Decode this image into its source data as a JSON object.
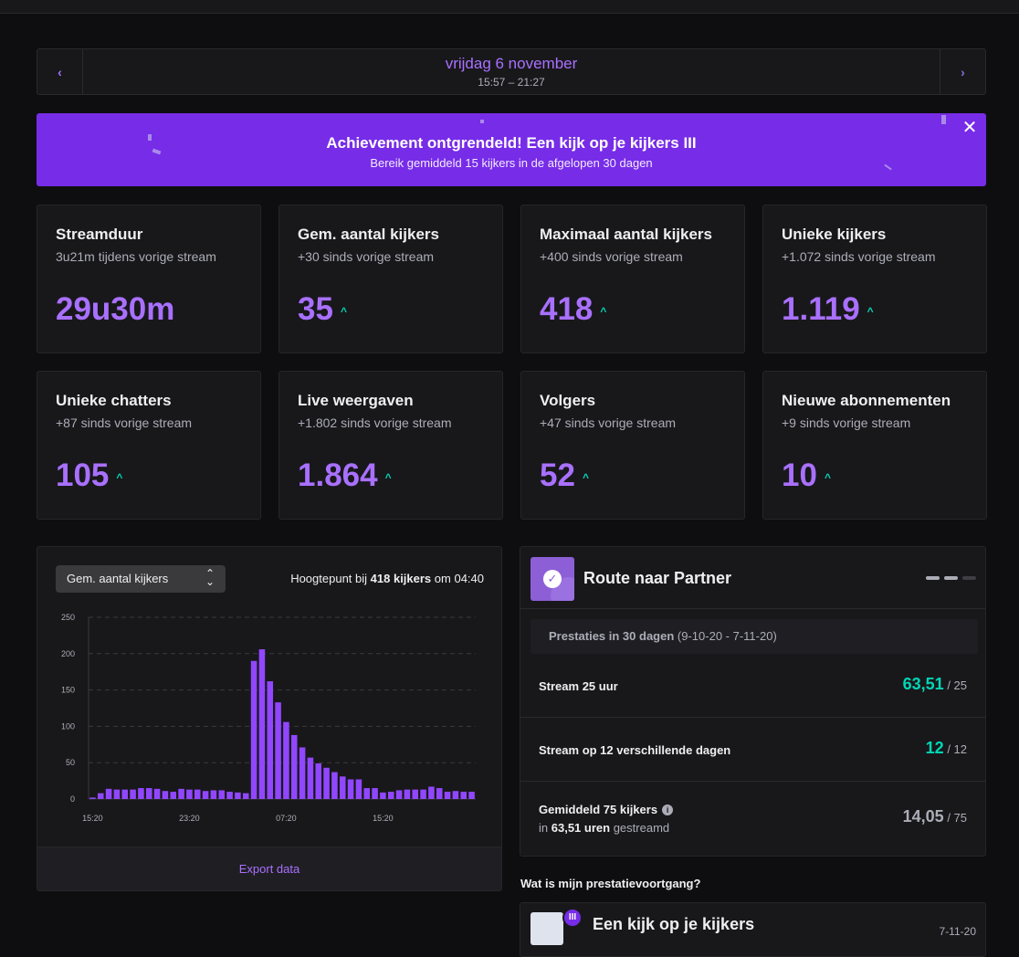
{
  "date_nav": {
    "prev": "‹",
    "next": "›",
    "date": "vrijdag 6 november",
    "time": "15:57 – 21:27"
  },
  "banner": {
    "title": "Achievement ontgrendeld! Een kijk op je kijkers III",
    "subtitle": "Bereik gemiddeld 15 kijkers in de afgelopen 30 dagen",
    "close": "✕"
  },
  "cards": [
    {
      "title": "Streamduur",
      "sub": "3u21m tijdens vorige stream",
      "value": "29u30m",
      "trend": ""
    },
    {
      "title": "Gem. aantal kijkers",
      "sub": "+30 sinds vorige stream",
      "value": "35",
      "trend": "^"
    },
    {
      "title": "Maximaal aantal kijkers",
      "sub": "+400 sinds vorige stream",
      "value": "418",
      "trend": "^"
    },
    {
      "title": "Unieke kijkers",
      "sub": "+1.072 sinds vorige stream",
      "value": "1.119",
      "trend": "^"
    },
    {
      "title": "Unieke chatters",
      "sub": "+87 sinds vorige stream",
      "value": "105",
      "trend": "^"
    },
    {
      "title": "Live weergaven",
      "sub": "+1.802 sinds vorige stream",
      "value": "1.864",
      "trend": "^"
    },
    {
      "title": "Volgers",
      "sub": "+47 sinds vorige stream",
      "value": "52",
      "trend": "^"
    },
    {
      "title": "Nieuwe abonnementen",
      "sub": "+9 sinds vorige stream",
      "value": "10",
      "trend": "^"
    }
  ],
  "chart_panel": {
    "select_label": "Gem. aantal kijkers",
    "peak_prefix": "Hoogtepunt bij",
    "peak_value": "418 kijkers",
    "peak_suffix": "om 04:40",
    "export_label": "Export data"
  },
  "chart_data": {
    "type": "bar",
    "title": "",
    "xlabel": "",
    "ylabel": "",
    "ylim": [
      0,
      250
    ],
    "yticks": [
      0,
      50,
      100,
      150,
      200,
      250
    ],
    "xtick_labels": [
      "15:20",
      "23:20",
      "07:20",
      "15:20"
    ],
    "xtick_index": [
      0,
      12,
      24,
      36
    ],
    "values": [
      2,
      8,
      14,
      13,
      13,
      13,
      15,
      15,
      14,
      11,
      10,
      14,
      13,
      13,
      11,
      12,
      12,
      10,
      9,
      8,
      190,
      206,
      162,
      133,
      106,
      88,
      71,
      57,
      49,
      43,
      37,
      31,
      27,
      27,
      15,
      15,
      9,
      10,
      12,
      13,
      13,
      13,
      17,
      15,
      10,
      11,
      10,
      10
    ],
    "color": "#9147ff"
  },
  "partner": {
    "title": "Route naar Partner",
    "period_label": "Prestaties in 30 dagen",
    "period_range": "(9-10-20 - 7-11-20)",
    "rows": [
      {
        "label": "Stream 25 uur",
        "value": "63,51",
        "target": "/ 25"
      },
      {
        "label": "Stream op 12 verschillende dagen",
        "value": "12",
        "target": "/ 12"
      },
      {
        "label": "Gemiddeld 75 kijkers",
        "info": "i",
        "sub_prefix": "in",
        "sub_value": "63,51 uren",
        "sub_suffix": "gestreamd",
        "value": "14,05",
        "target": "/ 75"
      }
    ]
  },
  "progress_heading": "Wat is mijn prestatievoortgang?",
  "achievement": {
    "level": "III",
    "title": "Een kijk op je kijkers",
    "date": "7-11-20"
  },
  "colors": {
    "accent": "#a970ff",
    "banner": "#772ce8",
    "positive": "#00d6b5",
    "bar": "#9147ff"
  }
}
